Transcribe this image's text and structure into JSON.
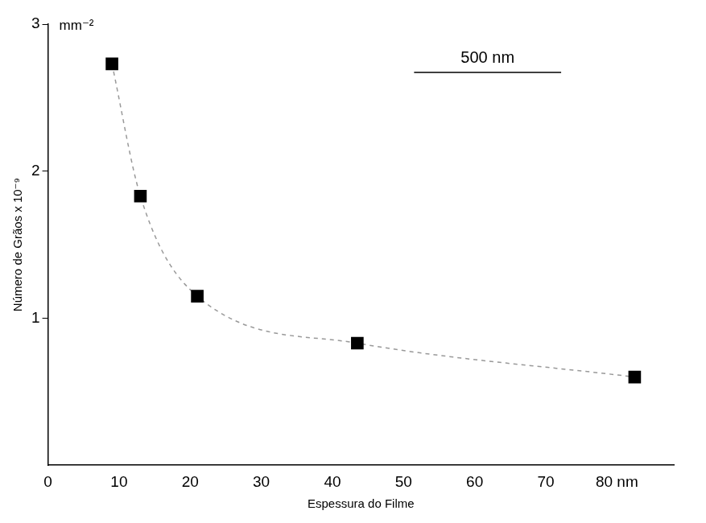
{
  "chart_data": {
    "type": "scatter",
    "x_label": "Espessura do Filme",
    "y_label": "Número de Grãos x 10⁻⁹",
    "annotations": [
      "mm⁻²",
      "500 nm"
    ],
    "x": [
      9,
      13,
      21,
      43.5,
      82.5
    ],
    "values": [
      2.73,
      1.83,
      1.15,
      0.83,
      0.6
    ],
    "color": "#000000",
    "marker": "square",
    "line_style": "dashed",
    "xlim": [
      0,
      88
    ],
    "xticks": [
      0,
      10,
      20,
      30,
      40,
      50,
      60,
      70,
      {
        "value": 80,
        "label": "80 nm"
      }
    ],
    "ylim": [
      0,
      3
    ],
    "yticks": [
      1,
      2,
      3
    ],
    "grid": false
  }
}
